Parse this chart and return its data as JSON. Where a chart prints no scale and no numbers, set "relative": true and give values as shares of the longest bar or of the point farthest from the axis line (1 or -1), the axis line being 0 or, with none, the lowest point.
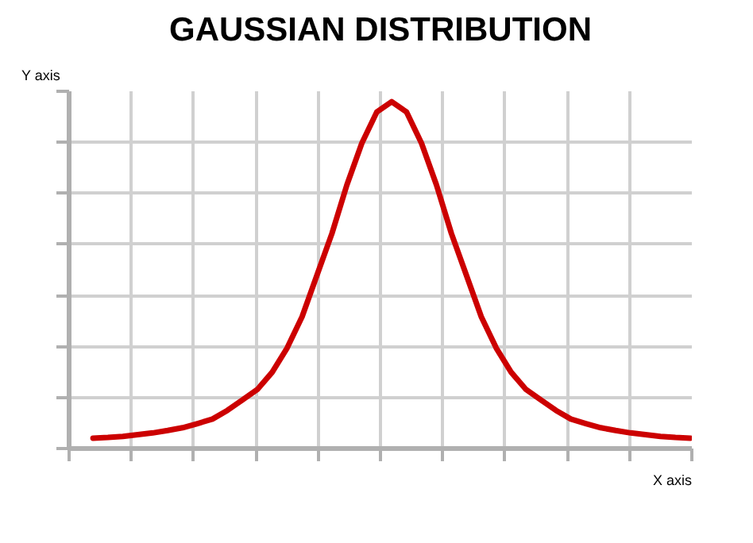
{
  "chart_data": {
    "type": "line",
    "title": "GAUSSIAN DISTRIBUTION",
    "xlabel": "X axis",
    "ylabel": "Y axis",
    "relative": true,
    "grid": true,
    "categories": [
      null,
      null,
      null,
      null,
      null,
      null,
      null,
      null,
      null,
      null,
      null,
      null,
      null,
      null,
      null,
      null,
      null,
      null,
      null,
      null,
      null,
      null,
      null,
      null,
      null,
      null,
      null,
      null,
      null,
      null,
      null,
      null,
      null,
      null,
      null,
      null,
      null,
      null,
      null,
      null,
      null
    ],
    "series": [
      {
        "color": "#cc0000",
        "values": [
          0.03,
          0.032,
          0.035,
          0.04,
          0.045,
          0.052,
          0.06,
          0.072,
          0.085,
          0.11,
          0.14,
          0.17,
          0.22,
          0.29,
          0.38,
          0.5,
          0.62,
          0.76,
          0.88,
          0.97,
          1.0,
          0.97,
          0.88,
          0.76,
          0.62,
          0.5,
          0.38,
          0.29,
          0.22,
          0.17,
          0.14,
          0.11,
          0.085,
          0.072,
          0.06,
          0.052,
          0.045,
          0.04,
          0.035,
          0.032,
          0.03
        ]
      }
    ]
  }
}
